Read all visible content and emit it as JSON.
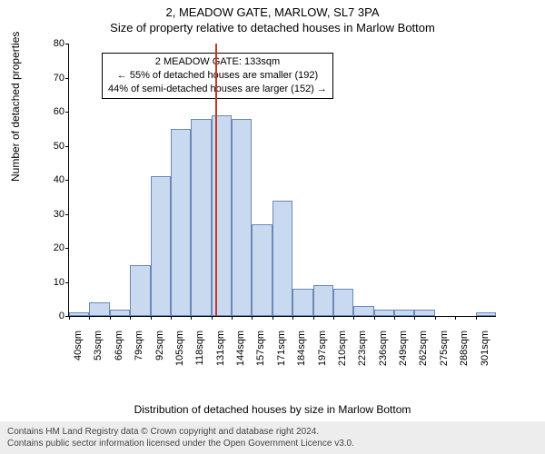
{
  "title_line1": "2, MEADOW GATE, MARLOW, SL7 3PA",
  "title_line2": "Size of property relative to detached houses in Marlow Bottom",
  "ylabel": "Number of detached properties",
  "xlabel": "Distribution of detached houses by size in Marlow Bottom",
  "annotation": {
    "line1": "2 MEADOW GATE: 133sqm",
    "line2": "← 55% of detached houses are smaller (192)",
    "line3": "44% of semi-detached houses are larger (152) →",
    "border_color": "#000000",
    "fontsize": 11
  },
  "chart": {
    "type": "histogram",
    "ylim": [
      0,
      80
    ],
    "ytick_step": 10,
    "yticks": [
      0,
      10,
      20,
      30,
      40,
      50,
      60,
      70,
      80
    ],
    "x_categories": [
      "40sqm",
      "53sqm",
      "66sqm",
      "79sqm",
      "92sqm",
      "105sqm",
      "118sqm",
      "131sqm",
      "144sqm",
      "157sqm",
      "171sqm",
      "184sqm",
      "197sqm",
      "210sqm",
      "223sqm",
      "236sqm",
      "249sqm",
      "262sqm",
      "275sqm",
      "288sqm",
      "301sqm"
    ],
    "values": [
      1,
      4,
      2,
      15,
      41,
      55,
      58,
      59,
      58,
      27,
      34,
      8,
      9,
      8,
      3,
      2,
      2,
      2,
      0,
      0,
      1
    ],
    "bar_fill": "#c9d9ef",
    "bar_border": "#6a88b8",
    "background_color": "#ffffff",
    "marker_line_x_index": 7.2,
    "marker_line_color": "#c0392b",
    "tick_fontsize": 11,
    "label_fontsize": 12,
    "title_fontsize": 13
  },
  "footer": {
    "line1": "Contains HM Land Registry data © Crown copyright and database right 2024.",
    "line2": "Contains public sector information licensed under the Open Government Licence v3.0.",
    "background_color": "#ededed"
  }
}
